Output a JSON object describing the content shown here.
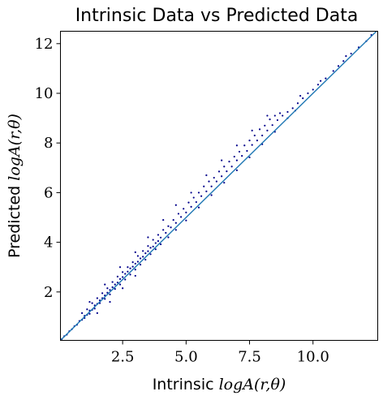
{
  "chart_data": {
    "type": "scatter",
    "title": "Intrinsic Data vs Predicted Data",
    "xlabel_prefix": "Intrinsic",
    "xlabel_math": "logA(r,θ)",
    "ylabel_prefix": "Predicted",
    "ylabel_math": "logA(r,θ)",
    "xlim": [
      0.05,
      12.55
    ],
    "ylim": [
      0.05,
      12.5
    ],
    "x_ticks": [
      2.5,
      5.0,
      7.5,
      10.0
    ],
    "x_tick_labels": [
      "2.5",
      "5.0",
      "7.5",
      "10.0"
    ],
    "y_ticks": [
      2,
      4,
      6,
      8,
      10,
      12
    ],
    "y_tick_labels": [
      "2",
      "4",
      "6",
      "8",
      "10",
      "12"
    ],
    "grid": false,
    "point_color": "#00008b",
    "line_color": "#1f77b4",
    "reference_line": {
      "from": [
        0.05,
        0.05
      ],
      "to": [
        12.5,
        12.5
      ]
    },
    "series": [
      {
        "values": [
          [
            0.1,
            0.1
          ],
          [
            0.2,
            0.22
          ],
          [
            0.3,
            0.28
          ],
          [
            0.4,
            0.42
          ],
          [
            0.5,
            0.5
          ],
          [
            0.6,
            0.62
          ],
          [
            0.7,
            0.68
          ],
          [
            0.8,
            0.83
          ],
          [
            0.9,
            0.88
          ],
          [
            1.0,
            1.04
          ],
          [
            1.1,
            1.08
          ],
          [
            1.2,
            1.25
          ],
          [
            1.3,
            1.28
          ],
          [
            1.4,
            1.46
          ],
          [
            1.5,
            1.52
          ],
          [
            1.6,
            1.66
          ],
          [
            1.7,
            1.75
          ],
          [
            1.8,
            1.86
          ],
          [
            1.9,
            1.97
          ],
          [
            2.0,
            2.08
          ],
          [
            2.1,
            2.19
          ],
          [
            2.2,
            2.3
          ],
          [
            2.3,
            2.38
          ],
          [
            2.4,
            2.52
          ],
          [
            2.5,
            2.6
          ],
          [
            2.6,
            2.73
          ],
          [
            2.7,
            2.82
          ],
          [
            2.8,
            2.95
          ],
          [
            2.9,
            3.02
          ],
          [
            3.0,
            3.14
          ],
          [
            3.1,
            3.22
          ],
          [
            3.2,
            3.35
          ],
          [
            3.3,
            3.42
          ],
          [
            3.4,
            3.56
          ],
          [
            3.5,
            3.64
          ],
          [
            3.6,
            3.78
          ],
          [
            3.7,
            3.83
          ],
          [
            3.8,
            3.97
          ],
          [
            3.9,
            4.05
          ],
          [
            4.0,
            4.19
          ],
          [
            4.2,
            4.38
          ],
          [
            4.4,
            4.6
          ],
          [
            4.6,
            4.78
          ],
          [
            4.8,
            5.02
          ],
          [
            5.0,
            5.2
          ],
          [
            5.2,
            5.43
          ],
          [
            5.4,
            5.62
          ],
          [
            5.6,
            5.86
          ],
          [
            5.8,
            6.05
          ],
          [
            6.0,
            6.25
          ],
          [
            6.2,
            6.45
          ],
          [
            6.4,
            6.66
          ],
          [
            6.6,
            6.86
          ],
          [
            6.8,
            7.05
          ],
          [
            7.0,
            7.3
          ],
          [
            7.2,
            7.48
          ],
          [
            7.4,
            7.68
          ],
          [
            7.6,
            7.92
          ],
          [
            7.8,
            8.1
          ],
          [
            8.0,
            8.3
          ],
          [
            8.2,
            8.5
          ],
          [
            8.4,
            8.72
          ],
          [
            8.6,
            8.92
          ],
          [
            8.8,
            9.1
          ],
          [
            9.0,
            9.25
          ],
          [
            9.2,
            9.4
          ],
          [
            9.4,
            9.6
          ],
          [
            9.6,
            9.8
          ],
          [
            9.8,
            10.0
          ],
          [
            10.0,
            10.15
          ],
          [
            10.2,
            10.35
          ],
          [
            10.5,
            10.6
          ],
          [
            10.8,
            10.9
          ],
          [
            11.0,
            11.1
          ],
          [
            11.2,
            11.3
          ],
          [
            11.5,
            11.6
          ],
          [
            11.8,
            11.85
          ],
          [
            12.1,
            12.1
          ],
          [
            12.3,
            12.35
          ],
          [
            0.9,
            1.15
          ],
          [
            1.1,
            1.3
          ],
          [
            1.3,
            1.55
          ],
          [
            1.5,
            1.75
          ],
          [
            1.7,
            1.95
          ],
          [
            1.9,
            2.15
          ],
          [
            2.1,
            2.4
          ],
          [
            2.3,
            2.62
          ],
          [
            2.5,
            2.8
          ],
          [
            2.7,
            3.0
          ],
          [
            2.9,
            3.2
          ],
          [
            3.1,
            3.45
          ],
          [
            3.3,
            3.65
          ],
          [
            3.5,
            3.85
          ],
          [
            3.7,
            4.1
          ],
          [
            3.9,
            4.3
          ],
          [
            4.1,
            4.5
          ],
          [
            4.3,
            4.65
          ],
          [
            4.5,
            4.9
          ],
          [
            4.7,
            5.15
          ],
          [
            4.9,
            5.35
          ],
          [
            5.1,
            5.6
          ],
          [
            5.3,
            5.8
          ],
          [
            5.5,
            6.0
          ],
          [
            5.7,
            6.25
          ],
          [
            5.9,
            6.45
          ],
          [
            6.1,
            6.6
          ],
          [
            6.3,
            6.85
          ],
          [
            6.5,
            7.05
          ],
          [
            6.7,
            7.25
          ],
          [
            6.9,
            7.45
          ],
          [
            7.1,
            7.65
          ],
          [
            7.3,
            7.9
          ],
          [
            7.5,
            8.1
          ],
          [
            7.7,
            8.3
          ],
          [
            7.9,
            8.55
          ],
          [
            8.1,
            8.7
          ],
          [
            8.3,
            8.95
          ],
          [
            8.5,
            9.1
          ],
          [
            8.7,
            9.2
          ],
          [
            1.0,
            0.95
          ],
          [
            1.2,
            1.12
          ],
          [
            1.4,
            1.33
          ],
          [
            1.6,
            1.55
          ],
          [
            1.8,
            1.72
          ],
          [
            2.0,
            1.9
          ],
          [
            2.2,
            2.12
          ],
          [
            2.4,
            2.3
          ],
          [
            2.6,
            2.5
          ],
          [
            2.8,
            2.7
          ],
          [
            3.0,
            2.9
          ],
          [
            3.2,
            3.1
          ],
          [
            3.4,
            3.3
          ],
          [
            3.6,
            3.52
          ],
          [
            3.8,
            3.72
          ],
          [
            4.0,
            3.92
          ],
          [
            4.3,
            4.2
          ],
          [
            4.6,
            4.5
          ],
          [
            5.0,
            4.88
          ],
          [
            5.5,
            5.4
          ],
          [
            6.0,
            5.9
          ],
          [
            6.5,
            6.4
          ],
          [
            7.0,
            6.9
          ],
          [
            7.5,
            7.42
          ],
          [
            8.0,
            7.95
          ],
          [
            8.5,
            8.45
          ],
          [
            9.0,
            9.0
          ],
          [
            1.5,
            1.15
          ],
          [
            2.0,
            1.6
          ],
          [
            2.5,
            2.15
          ],
          [
            3.0,
            2.65
          ],
          [
            1.2,
            1.6
          ],
          [
            1.8,
            2.3
          ],
          [
            2.4,
            3.0
          ],
          [
            3.0,
            3.6
          ],
          [
            3.5,
            4.2
          ],
          [
            4.1,
            4.9
          ],
          [
            4.6,
            5.5
          ],
          [
            5.2,
            6.0
          ],
          [
            5.8,
            6.7
          ],
          [
            6.4,
            7.3
          ],
          [
            7.0,
            7.9
          ],
          [
            7.6,
            8.5
          ],
          [
            8.2,
            9.1
          ],
          [
            9.3,
            9.3
          ],
          [
            10.3,
            10.5
          ],
          [
            11.3,
            11.5
          ],
          [
            9.5,
            9.9
          ]
        ]
      }
    ]
  }
}
